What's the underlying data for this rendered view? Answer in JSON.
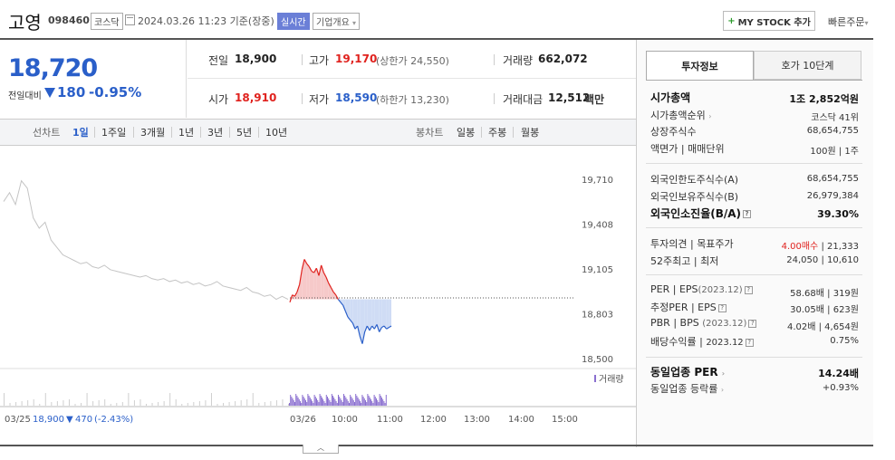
{
  "header": {
    "stock_name": "고영",
    "stock_code": "098460",
    "market": "코스닥",
    "date": "2024.03.26 11:23 기준(장중)",
    "realtime": "실시간",
    "company_overview": "기업개요",
    "mystock_button": "MY STOCK 추가",
    "quick_order": "빠른주문"
  },
  "price": {
    "current": "18,720",
    "prev_label": "전일대비",
    "change": "180",
    "change_rate": "-0.95%",
    "direction": "down"
  },
  "stats": {
    "prev_close_label": "전일",
    "prev_close": "18,900",
    "high_label": "고가",
    "high": "19,170",
    "upper_limit": "(상한가 24,550)",
    "volume_label": "거래량",
    "volume": "662,072",
    "open_label": "시가",
    "open": "18,910",
    "low_label": "저가",
    "low": "18,590",
    "lower_limit": "(하한가 13,230)",
    "amount_label": "거래대금",
    "amount": "12,512",
    "amount_unit": "백만"
  },
  "tabs": {
    "line_label": "선차트",
    "line_periods": [
      "1일",
      "1주일",
      "3개월",
      "1년",
      "3년",
      "5년",
      "10년"
    ],
    "active": "1일",
    "candle_label": "봉차트",
    "candle_periods": [
      "일봉",
      "주봉",
      "월봉"
    ]
  },
  "chart_data": {
    "type": "line",
    "y_ticks": [
      "19,710",
      "19,408",
      "19,105",
      "18,803",
      "18,500"
    ],
    "ylim": [
      18500,
      19710
    ],
    "x_ticks": [
      "03/26",
      "10:00",
      "11:00",
      "12:00",
      "13:00",
      "14:00",
      "15:00"
    ],
    "prev_close": 18900,
    "volume_label": "거래량",
    "prev_day": {
      "label": "03/25",
      "close": "18,900",
      "change": "470",
      "change_rate": "(-2.43%)",
      "values": [
        19560,
        19620,
        19540,
        19700,
        19650,
        19450,
        19380,
        19420,
        19300,
        19250,
        19200,
        19180,
        19160,
        19140,
        19150,
        19120,
        19110,
        19130,
        19100,
        19090,
        19080,
        19070,
        19060,
        19050,
        19060,
        19040,
        19030,
        19040,
        19020,
        19030,
        19010,
        19020,
        19000,
        19010,
        18990,
        19000,
        19020,
        18990,
        18980,
        18970,
        18960,
        18980,
        18950,
        18940,
        18920,
        18930,
        18900,
        18920,
        18900
      ]
    },
    "today": {
      "values": [
        18880,
        18930,
        18920,
        18950,
        19000,
        19100,
        19170,
        19140,
        19120,
        19090,
        19080,
        19110,
        19060,
        19130,
        19080,
        19050,
        19010,
        18980,
        18950,
        18930,
        18900,
        18880,
        18860,
        18820,
        18780,
        18760,
        18740,
        18700,
        18720,
        18650,
        18600,
        18680,
        18720,
        18690,
        18720,
        18700,
        18730,
        18680,
        18710,
        18720,
        18700,
        18710,
        18720
      ]
    }
  },
  "right_panel": {
    "tab_invest": "투자정보",
    "tab_quote": "호가 10단계",
    "market_cap_label": "시가총액",
    "market_cap": "1조 2,852억원",
    "cap_rank_label": "시가총액순위",
    "cap_rank": "코스닥 41위",
    "shares_label": "상장주식수",
    "shares": "68,654,755",
    "par_label": "액면가",
    "unit_label": "매매단위",
    "par_unit": "100원 | 1주",
    "foreign_limit_label": "외국인한도주식수(A)",
    "foreign_limit": "68,654,755",
    "foreign_hold_label": "외국인보유주식수(B)",
    "foreign_hold": "26,979,384",
    "foreign_rate_label": "외국인소진율(B/A)",
    "foreign_rate": "39.30%",
    "opinion_label": "투자의견",
    "target_label": "목표주가",
    "opinion": "4.00매수",
    "target": "21,333",
    "high52_label": "52주최고",
    "low52_label": "최저",
    "high52": "24,050",
    "low52": "10,610",
    "per_label": "PER",
    "eps_label": "EPS",
    "eps_year": "(2023.12)",
    "per": "58.68배",
    "eps": "319원",
    "est_per_label": "추정PER",
    "est_eps_label": "EPS",
    "est_per": "30.05배",
    "est_eps": "623원",
    "pbr_label": "PBR",
    "bps_label": "BPS",
    "bps_year": "(2023.12)",
    "pbr": "4.02배",
    "bps": "4,654원",
    "div_label": "배당수익률",
    "div_year": "2023.12",
    "div": "0.75%",
    "sector_per_label": "동일업종 PER",
    "sector_per": "14.24배",
    "sector_rate_label": "동일업종 등락률",
    "sector_rate": "+0.93%"
  },
  "footer": {
    "collapse": "︿"
  }
}
